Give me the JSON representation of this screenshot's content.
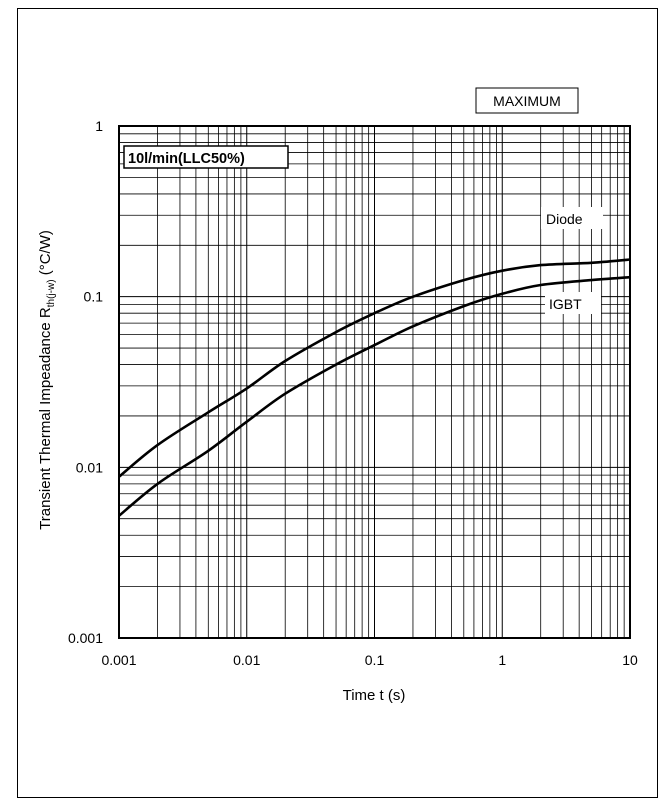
{
  "chart_data": {
    "type": "line",
    "title": "",
    "condition_label": "10l/min(LLC50%)",
    "rating_label": "MAXIMUM",
    "xlabel": "Time t (s)",
    "ylabel_main": "Transient Thermal Impeadance R",
    "ylabel_sub": "th(j-w)",
    "ylabel_unit": " (°C/W)",
    "xscale": "log",
    "yscale": "log",
    "xlim": [
      0.001,
      10
    ],
    "ylim": [
      0.001,
      1
    ],
    "x_ticks": [
      "0.001",
      "0.01",
      "0.1",
      "1",
      "10"
    ],
    "y_ticks": [
      "0.001",
      "0.01",
      "0.1",
      "1"
    ],
    "grid": true,
    "series": [
      {
        "name": "Diode",
        "x": [
          0.001,
          0.002,
          0.005,
          0.01,
          0.02,
          0.05,
          0.1,
          0.2,
          0.5,
          1,
          2,
          5,
          10
        ],
        "y": [
          0.0088,
          0.0135,
          0.021,
          0.029,
          0.042,
          0.062,
          0.08,
          0.1,
          0.125,
          0.142,
          0.153,
          0.158,
          0.165
        ]
      },
      {
        "name": "IGBT",
        "x": [
          0.001,
          0.002,
          0.005,
          0.01,
          0.02,
          0.05,
          0.1,
          0.2,
          0.5,
          1,
          2,
          5,
          10
        ],
        "y": [
          0.0052,
          0.008,
          0.0125,
          0.0185,
          0.027,
          0.04,
          0.052,
          0.067,
          0.088,
          0.104,
          0.117,
          0.125,
          0.13
        ]
      }
    ]
  }
}
